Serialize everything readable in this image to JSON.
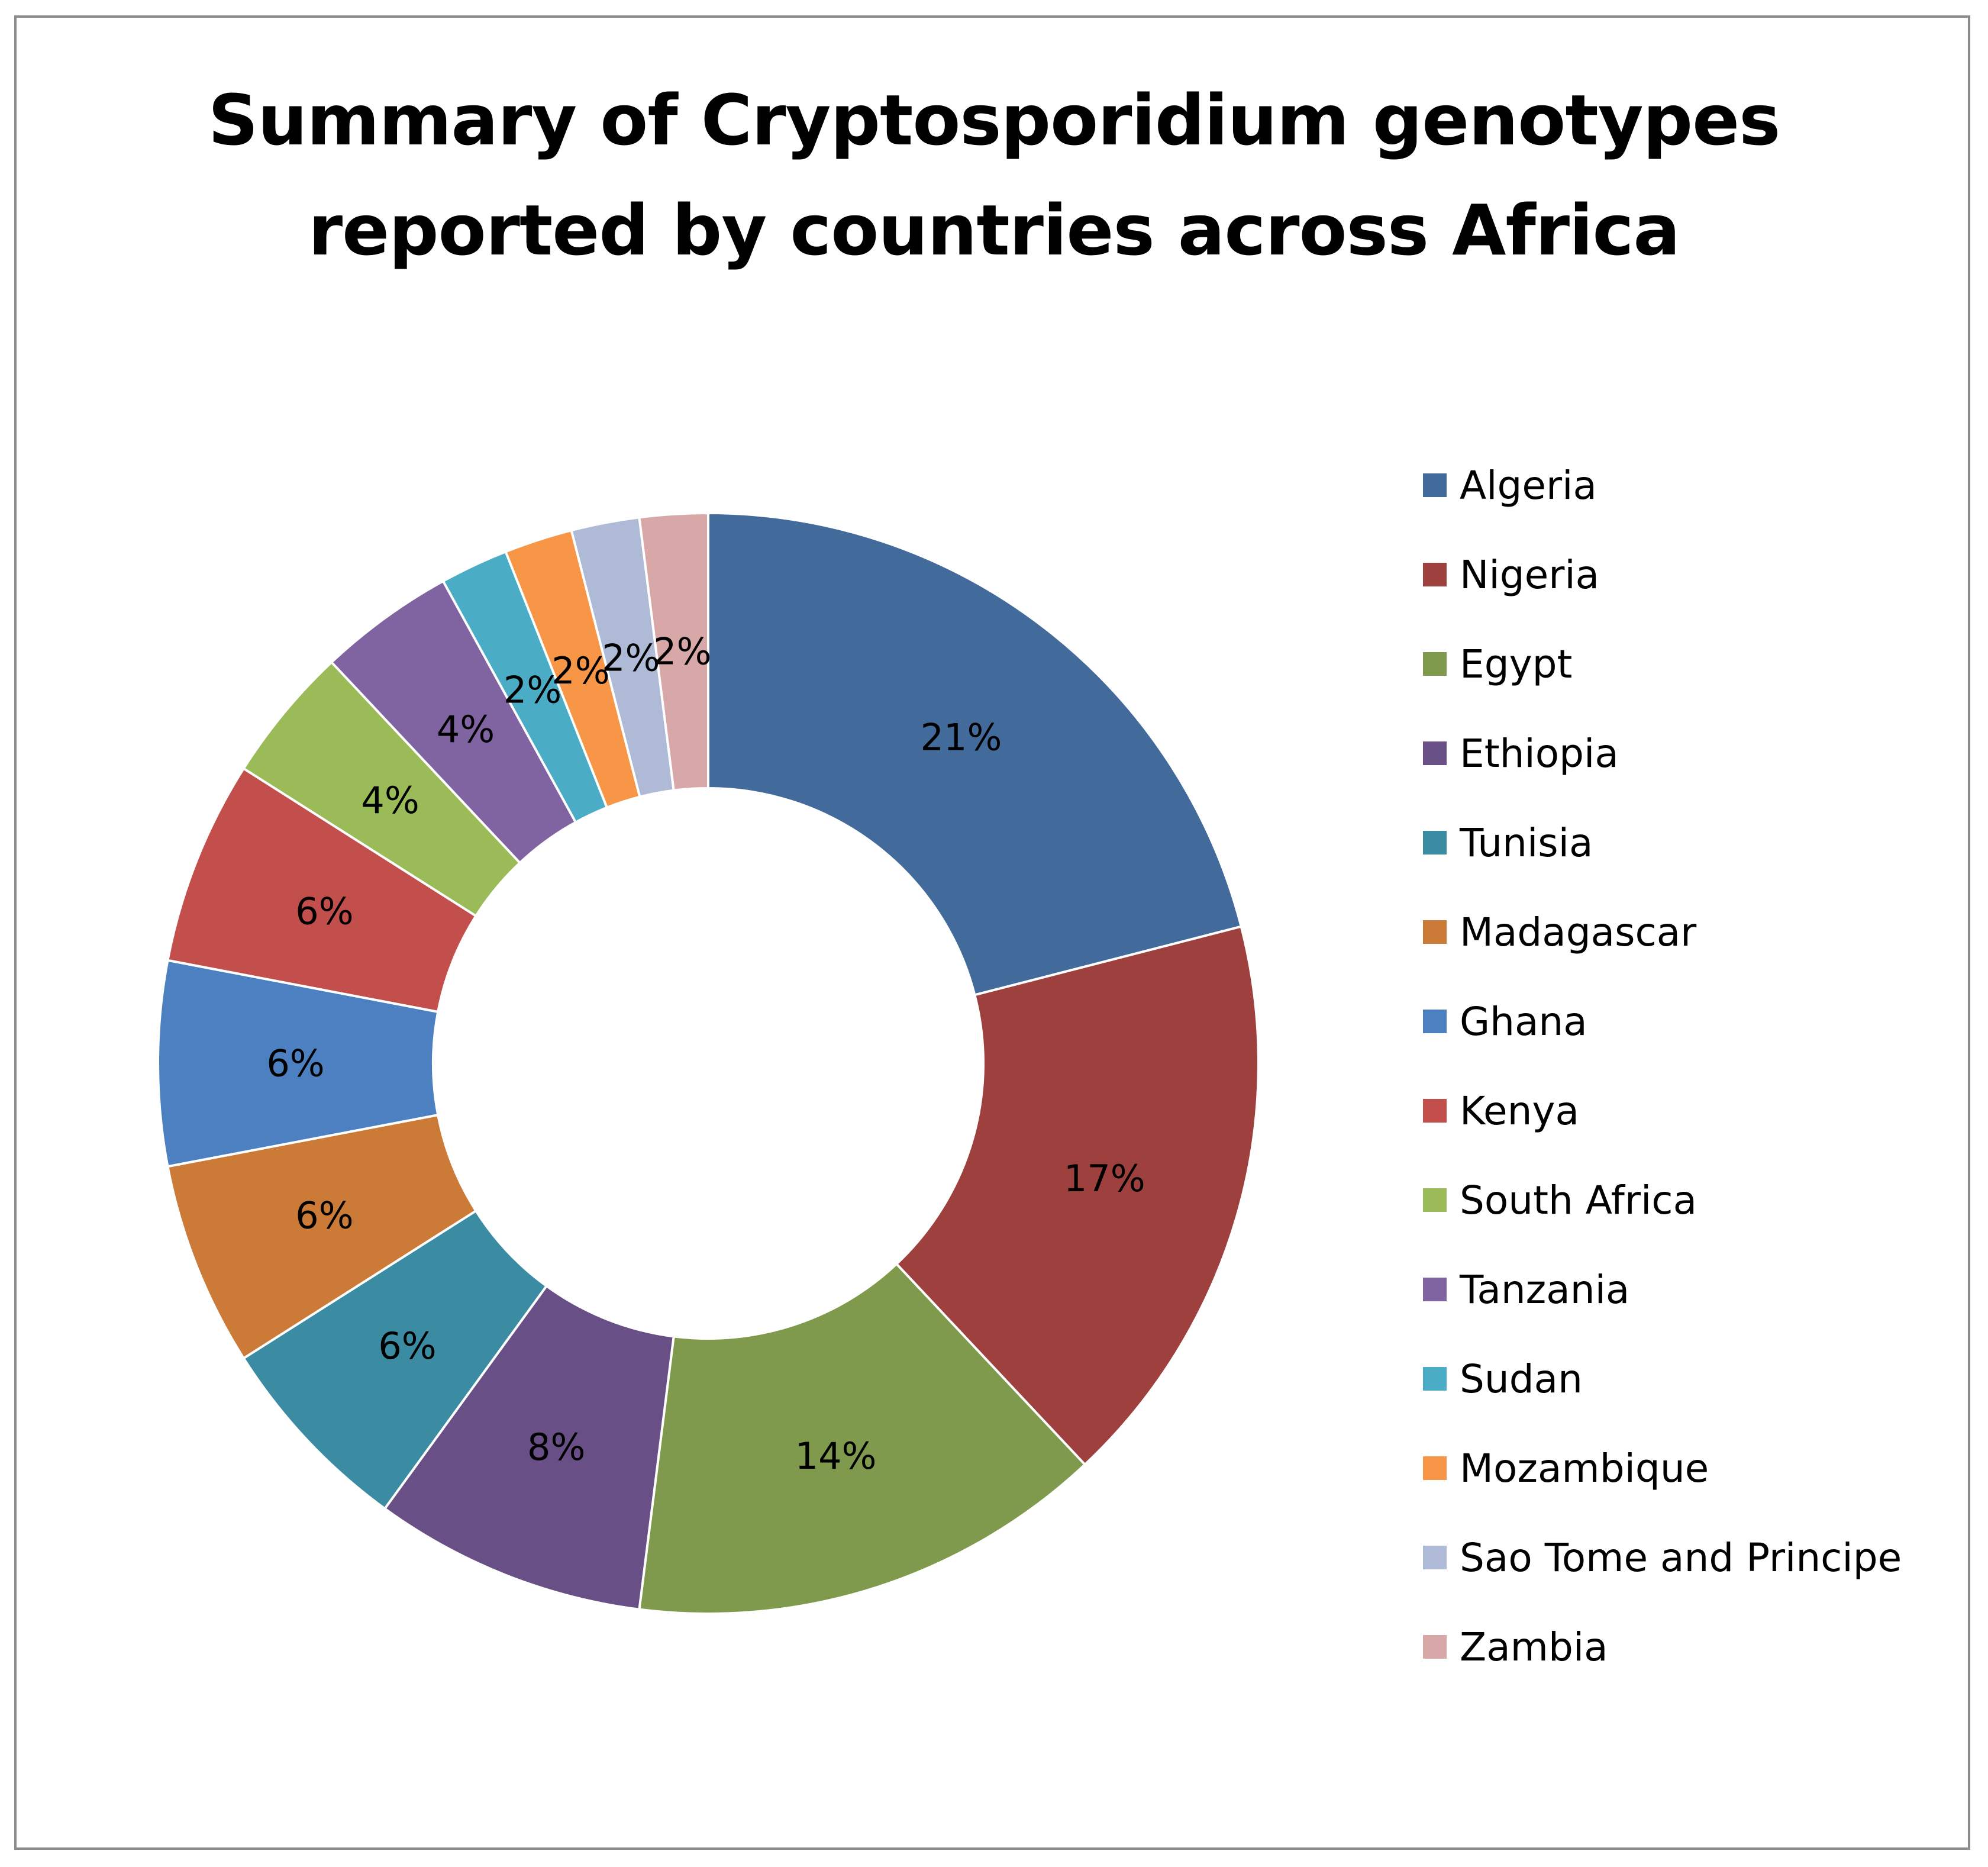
{
  "chart_data": {
    "type": "pie",
    "variant": "donut",
    "title": [
      "Summary of Cryptosporidium genotypes",
      "reported by countries across Africa"
    ],
    "legend_placement": "right",
    "slices": [
      {
        "name": "Algeria",
        "value": 21,
        "label": "21%",
        "color": "#426a9b"
      },
      {
        "name": "Nigeria",
        "value": 17,
        "label": "17%",
        "color": "#9e403e"
      },
      {
        "name": "Egypt",
        "value": 14,
        "label": "14%",
        "color": "#7f9a4c"
      },
      {
        "name": "Ethiopia",
        "value": 8,
        "label": "8%",
        "color": "#684f86"
      },
      {
        "name": "Tunisia",
        "value": 6,
        "label": "6%",
        "color": "#3b8ba3"
      },
      {
        "name": "Madagascar",
        "value": 6,
        "label": "6%",
        "color": "#cb7a38"
      },
      {
        "name": "Ghana",
        "value": 6,
        "label": "6%",
        "color": "#4d80c1"
      },
      {
        "name": "Kenya",
        "value": 6,
        "label": "6%",
        "color": "#c24f4c"
      },
      {
        "name": "South Africa",
        "value": 4,
        "label": "4%",
        "color": "#9bbb59"
      },
      {
        "name": "Tanzania",
        "value": 4,
        "label": "4%",
        "color": "#8064a2"
      },
      {
        "name": "Sudan",
        "value": 2,
        "label": "2%",
        "color": "#4bacc6"
      },
      {
        "name": "Mozambique",
        "value": 2,
        "label": "2%",
        "color": "#f79646"
      },
      {
        "name": "Sao Tome and Principe",
        "value": 2,
        "label": "2%",
        "color": "#aebad6"
      },
      {
        "name": "Zambia",
        "value": 2,
        "label": "2%",
        "color": "#d8a8a8"
      }
    ]
  }
}
